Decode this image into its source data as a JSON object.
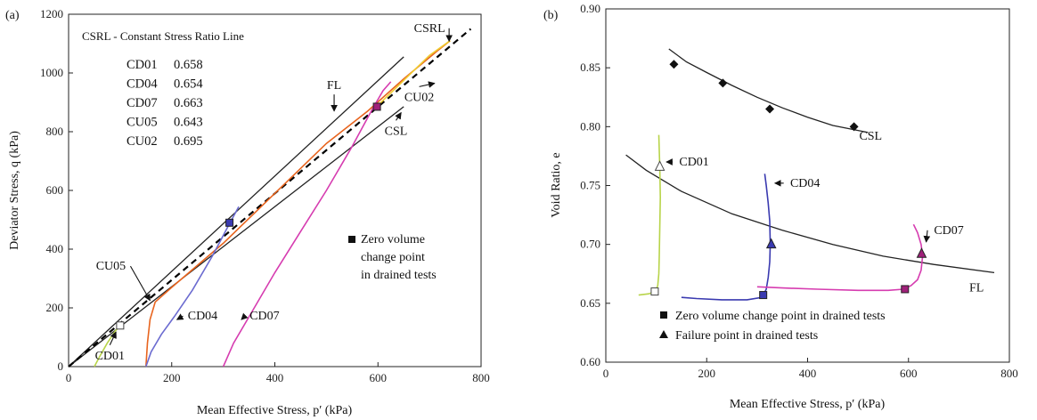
{
  "chart_data": [
    {
      "panel": "(a)",
      "type": "line",
      "xlabel": "Mean Effective Stress, p′ (kPa)",
      "ylabel": "Deviator Stress, q (kPa)",
      "xlim": [
        0,
        800
      ],
      "ylim": [
        0,
        1200
      ],
      "xticks": [
        "0",
        "200",
        "400",
        "600",
        "800"
      ],
      "yticks": [
        "0",
        "200",
        "400",
        "600",
        "800",
        "1000",
        "1200"
      ],
      "legend_title": "CSRL - Constant Stress Ratio Line",
      "ratios": [
        {
          "name": "CD01",
          "value": "0.658"
        },
        {
          "name": "CD04",
          "value": "0.654"
        },
        {
          "name": "CD07",
          "value": "0.663"
        },
        {
          "name": "CU05",
          "value": "0.643"
        },
        {
          "name": "CU02",
          "value": "0.695"
        }
      ],
      "zero_volume_note": [
        "Zero volume",
        "change point",
        "in drained tests"
      ],
      "lines": [
        {
          "name": "FL",
          "color": "#222222",
          "points": [
            [
              0,
              0
            ],
            [
              650,
              1055
            ]
          ]
        },
        {
          "name": "CSL",
          "color": "#222222",
          "points": [
            [
              0,
              0
            ],
            [
              650,
              885
            ]
          ]
        },
        {
          "name": "CSRL",
          "color": "#000000",
          "dashed": true,
          "points": [
            [
              0,
              0
            ],
            [
              780,
              1150
            ]
          ]
        }
      ],
      "series": [
        {
          "name": "CD01",
          "color": "#b8d44a",
          "points": [
            [
              50,
              0
            ],
            [
              62,
              40
            ],
            [
              75,
              80
            ],
            [
              90,
              120
            ],
            [
              100,
              140
            ]
          ]
        },
        {
          "name": "CU05",
          "color": "#e8641e",
          "points": [
            [
              150,
              0
            ],
            [
              153,
              80
            ],
            [
              158,
              160
            ],
            [
              168,
              220
            ],
            [
              200,
              270
            ],
            [
              300,
              420
            ],
            [
              400,
              590
            ],
            [
              500,
              760
            ],
            [
              580,
              870
            ],
            [
              650,
              980
            ],
            [
              715,
              1075
            ],
            [
              740,
              1110
            ]
          ]
        },
        {
          "name": "CD04",
          "color": "#6b6bd0",
          "points": [
            [
              150,
              0
            ],
            [
              160,
              50
            ],
            [
              180,
              110
            ],
            [
              205,
              170
            ],
            [
              240,
              260
            ],
            [
              280,
              380
            ],
            [
              310,
              480
            ],
            [
              330,
              545
            ]
          ]
        },
        {
          "name": "CD07",
          "color": "#d63cb0",
          "points": [
            [
              300,
              0
            ],
            [
              320,
              80
            ],
            [
              350,
              170
            ],
            [
              400,
              320
            ],
            [
              450,
              460
            ],
            [
              500,
              600
            ],
            [
              550,
              750
            ],
            [
              590,
              880
            ],
            [
              610,
              940
            ],
            [
              625,
              970
            ]
          ]
        },
        {
          "name": "CU02",
          "color": "#f0cc30",
          "points": [
            [
              600,
              890
            ],
            [
              650,
              975
            ],
            [
              700,
              1060
            ],
            [
              740,
              1110
            ]
          ]
        }
      ],
      "markers": [
        {
          "series": "CD01",
          "x": 100,
          "y": 140,
          "color": "#b8d44a"
        },
        {
          "series": "CD04",
          "x": 312,
          "y": 490,
          "color": "#3a3ab0"
        },
        {
          "series": "CD07",
          "x": 598,
          "y": 885,
          "color": "#a0207a"
        }
      ],
      "annotations": [
        {
          "text": "CSRL",
          "x": 700,
          "y": 1140,
          "ax": 738,
          "ay": 1108
        },
        {
          "text": "FL",
          "x": 515,
          "y": 945,
          "ax": 515,
          "ay": 870
        },
        {
          "text": "CU02",
          "x": 680,
          "y": 905,
          "ax": 710,
          "ay": 965
        },
        {
          "text": "CSL",
          "x": 635,
          "y": 790,
          "ax": 645,
          "ay": 865
        },
        {
          "text": "CU05",
          "x": 82,
          "y": 330,
          "ax": 158,
          "ay": 225
        },
        {
          "text": "CD04",
          "x": 260,
          "y": 160,
          "ax": 210,
          "ay": 160
        },
        {
          "text": "CD07",
          "x": 380,
          "y": 160,
          "ax": 335,
          "ay": 160
        },
        {
          "text": "CD01",
          "x": 80,
          "y": 25,
          "ax": 92,
          "ay": 118
        }
      ]
    },
    {
      "panel": "(b)",
      "type": "line",
      "xlabel": "Mean Effective Stress, p′ (kPa)",
      "ylabel": "Void Ratio, e",
      "xlim": [
        0,
        800
      ],
      "ylim": [
        0.6,
        0.9
      ],
      "xticks": [
        "0",
        "200",
        "400",
        "600",
        "800"
      ],
      "yticks": [
        "0.60",
        "0.65",
        "0.70",
        "0.75",
        "0.80",
        "0.85",
        "0.90"
      ],
      "legend": [
        {
          "marker": "square",
          "label": "Zero volume change point in drained tests"
        },
        {
          "marker": "triangle",
          "label": "Failure point in drained tests"
        }
      ],
      "lines": [
        {
          "name": "CSL",
          "color": "#222222",
          "points": [
            [
              125,
              0.866
            ],
            [
              160,
              0.855
            ],
            [
              200,
              0.846
            ],
            [
              250,
              0.835
            ],
            [
              300,
              0.825
            ],
            [
              350,
              0.816
            ],
            [
              400,
              0.808
            ],
            [
              450,
              0.801
            ],
            [
              520,
              0.795
            ]
          ]
        },
        {
          "name": "FL",
          "color": "#222222",
          "points": [
            [
              40,
              0.776
            ],
            [
              80,
              0.763
            ],
            [
              150,
              0.745
            ],
            [
              250,
              0.726
            ],
            [
              350,
              0.712
            ],
            [
              450,
              0.7
            ],
            [
              550,
              0.69
            ],
            [
              650,
              0.683
            ],
            [
              770,
              0.676
            ]
          ]
        }
      ],
      "series": [
        {
          "name": "CD01",
          "color": "#b8d44a",
          "points": [
            [
              105,
              0.793
            ],
            [
              106,
              0.78
            ],
            [
              107,
              0.765
            ],
            [
              108,
              0.74
            ],
            [
              107,
              0.715
            ],
            [
              106,
              0.69
            ],
            [
              105,
              0.675
            ],
            [
              103,
              0.665
            ],
            [
              98,
              0.66
            ],
            [
              85,
              0.658
            ],
            [
              65,
              0.657
            ]
          ]
        },
        {
          "name": "CD04",
          "color": "#3a3ab0",
          "points": [
            [
              315,
              0.76
            ],
            [
              318,
              0.75
            ],
            [
              322,
              0.735
            ],
            [
              325,
              0.72
            ],
            [
              326,
              0.7
            ],
            [
              325,
              0.685
            ],
            [
              322,
              0.672
            ],
            [
              318,
              0.662
            ],
            [
              310,
              0.655
            ],
            [
              280,
              0.653
            ],
            [
              230,
              0.653
            ],
            [
              180,
              0.654
            ],
            [
              150,
              0.655
            ]
          ]
        },
        {
          "name": "CD07",
          "color": "#d63cb0",
          "points": [
            [
              610,
              0.717
            ],
            [
              618,
              0.71
            ],
            [
              625,
              0.7
            ],
            [
              628,
              0.69
            ],
            [
              625,
              0.678
            ],
            [
              618,
              0.67
            ],
            [
              605,
              0.665
            ],
            [
              590,
              0.662
            ],
            [
              560,
              0.661
            ],
            [
              500,
              0.661
            ],
            [
              420,
              0.662
            ],
            [
              350,
              0.663
            ],
            [
              300,
              0.664
            ]
          ]
        }
      ],
      "diamonds": [
        {
          "x": 135,
          "y": 0.853
        },
        {
          "x": 232,
          "y": 0.837
        },
        {
          "x": 325,
          "y": 0.815
        },
        {
          "x": 492,
          "y": 0.8
        }
      ],
      "squares": [
        {
          "x": 97,
          "y": 0.66,
          "color": "#b8d44a"
        },
        {
          "x": 312,
          "y": 0.657,
          "color": "#3a3ab0"
        },
        {
          "x": 593,
          "y": 0.662,
          "color": "#a0207a"
        }
      ],
      "triangles": [
        {
          "x": 107,
          "y": 0.766,
          "color": "#b8d44a"
        },
        {
          "x": 328,
          "y": 0.7,
          "color": "#3a3ab0"
        },
        {
          "x": 626,
          "y": 0.692,
          "color": "#a0207a"
        }
      ],
      "annotations": [
        {
          "text": "CSL",
          "x": 525,
          "y": 0.792
        },
        {
          "text": "FL",
          "x": 735,
          "y": 0.663
        },
        {
          "text": "CD01",
          "x": 175,
          "y": 0.77,
          "ax": 120,
          "ay": 0.77
        },
        {
          "text": "CD04",
          "x": 395,
          "y": 0.752,
          "ax": 335,
          "ay": 0.752
        },
        {
          "text": "CD07",
          "x": 680,
          "y": 0.712,
          "ax": 635,
          "ay": 0.702
        }
      ]
    }
  ]
}
